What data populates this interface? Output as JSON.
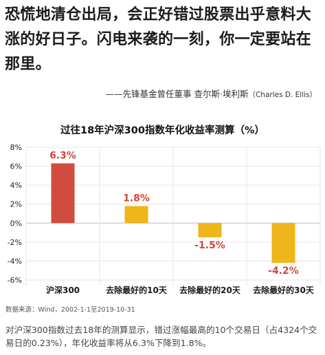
{
  "quote": {
    "text": "恐慌地清仓出局，会正好错过股票出乎意料大涨的好日子。闪电来袭的一刻，你一定要站在那里。"
  },
  "attribution": {
    "prefix": "——先锋基金曾任董事 查尔斯·埃利斯",
    "english": "（Charles D. Ellis）"
  },
  "chart_data": {
    "type": "bar",
    "title": "过往18年沪深300指数年化收益率测算（%）",
    "categories": [
      "沪深300",
      "去除最好的10天",
      "去除最好的20天",
      "去除最好的30天"
    ],
    "values": [
      6.3,
      1.8,
      -1.5,
      -4.2
    ],
    "value_labels": [
      "6.3%",
      "1.8%",
      "-1.5%",
      "-4.2%"
    ],
    "bar_colors": [
      "#d14b3e",
      "#f0b51b",
      "#f0b51b",
      "#f0b51b"
    ],
    "label_color": "#d2463a",
    "ylim": [
      -6,
      8
    ],
    "yticks": [
      -6,
      -4,
      -2,
      0,
      2,
      4,
      6,
      8
    ],
    "ytick_labels": [
      "-6%",
      "-4%",
      "-2%",
      "0%",
      "2%",
      "4%",
      "6%",
      "8%"
    ],
    "grid": true,
    "xlabel": "",
    "ylabel": ""
  },
  "source": {
    "text": "数据来源：Wind，2002-1-1至2019-10-31"
  },
  "note": {
    "text": "对沪深300指数过去18年的测算显示，错过涨幅最高的10个交易日（占4324个交易日的0.23%），年化收益率将从6.3%下降到1.8%。"
  }
}
